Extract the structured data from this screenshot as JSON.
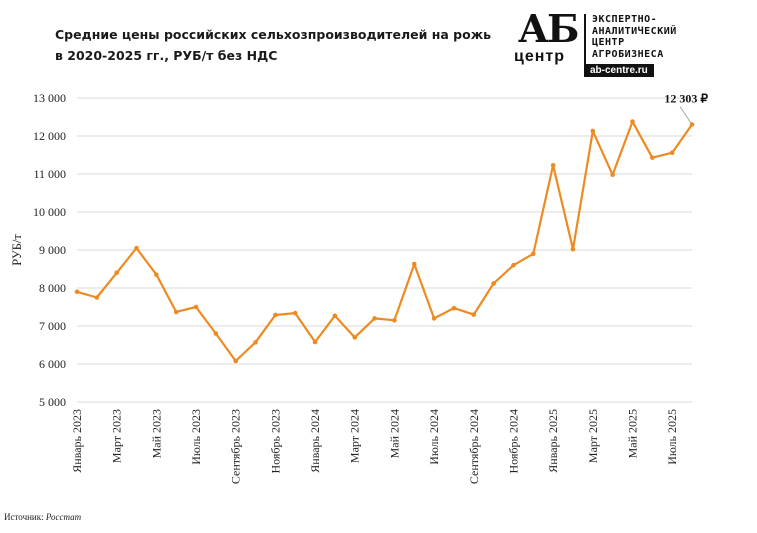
{
  "header": {
    "title_line1": "Средние цены российских сельхозпроизводителей на рожь",
    "title_line2": "в 2020-2025 гг., РУБ/т без НДС"
  },
  "logo": {
    "ab": "АБ",
    "center": "центр",
    "org_line1": "ЭКСПЕРТНО-",
    "org_line2": "АНАЛИТИЧЕСКИЙ",
    "org_line3": "ЦЕНТР",
    "org_line4": "АГРОБИЗНЕСА",
    "url": "ab-centre.ru"
  },
  "source": {
    "label": "Источник:",
    "name": "Росстат"
  },
  "colors": {
    "line": "#ED8B22",
    "grid": "#D9D9D9",
    "annotation_leader": "#A6A6A6"
  },
  "chart_data": {
    "type": "line",
    "title": "Средние цены российских сельхозпроизводителей на рожь в 2020-2025 гг., РУБ/т без НДС",
    "ylabel": "РУБ/т",
    "xlabel": "",
    "ylim": [
      5000,
      13000
    ],
    "yticks": [
      5000,
      6000,
      7000,
      8000,
      9000,
      10000,
      11000,
      12000,
      13000
    ],
    "ytick_labels": [
      "5 000",
      "6 000",
      "7 000",
      "8 000",
      "9 000",
      "10 000",
      "11 000",
      "12 000",
      "13 000"
    ],
    "grid": "horizontal",
    "legend": "none",
    "x_tick_labels": [
      "Январь 2023",
      "Март 2023",
      "Май 2023",
      "Июль 2023",
      "Сентябрь 2023",
      "Ноябрь 2023",
      "Январь 2024",
      "Март 2024",
      "Май 2024",
      "Июль 2024",
      "Сентябрь 2024",
      "Ноябрь 2024",
      "Январь 2025",
      "Март 2025",
      "Май 2025",
      "Июль 2025"
    ],
    "series": [
      {
        "values": [
          7900,
          7750,
          8400,
          9050,
          8350,
          7370,
          7500,
          6800,
          6080,
          6570,
          7290,
          7340,
          6580,
          7270,
          6700,
          7200,
          7150,
          8630,
          7200,
          7470,
          7300,
          8120,
          8600,
          8900,
          11230,
          9020,
          12130,
          10980,
          12380,
          11430,
          11560,
          12303
        ]
      }
    ],
    "annotations": [
      {
        "text": "12 303 ₽",
        "value": 12303
      }
    ]
  }
}
